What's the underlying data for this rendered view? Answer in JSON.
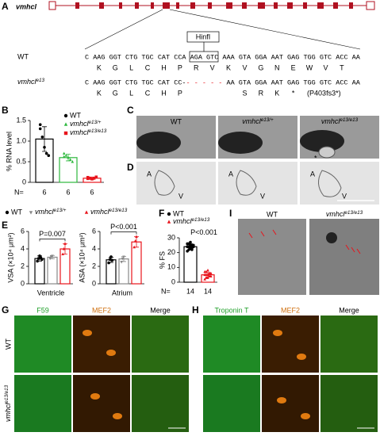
{
  "panels": {
    "a": "A",
    "b": "B",
    "c": "C",
    "d": "D",
    "e": "E",
    "f": "F",
    "g": "G",
    "h": "H",
    "i": "I"
  },
  "gene": {
    "name": "vmhcl",
    "enzyme": "HinfI"
  },
  "sequence": {
    "wt_label": "WT",
    "wt_dna": "C AAG GGT CTG TGC CAT CCA AGA GTC AAA GTA GGA AAT GAG TGG GTC ACC AA",
    "wt_aa": [
      "K",
      "G",
      "L",
      "C",
      "H",
      "P",
      "R",
      "V",
      "K",
      "V",
      "G",
      "N",
      "E",
      "W",
      "V",
      "T"
    ],
    "mut_label": "vmhcl e13",
    "mut_dna": [
      "C AAG GGT CTG TGC CAT CC-",
      "- - - - -",
      "AA GTA GGA AAT GAG TGG GTC ACC AA"
    ],
    "mut_aa": [
      "K",
      "G",
      "L",
      "C",
      "H",
      "P",
      "S",
      "R",
      "K",
      "*"
    ],
    "mut_note": "(P403fs3*)"
  },
  "chart_data": [
    {
      "type": "bar",
      "ylabel": "% RNA level",
      "ylim": [
        0,
        1.5
      ],
      "yticks": [
        0,
        0.5,
        {
          "value": 1,
          "label": "1.0"
        },
        1.5
      ],
      "n_label": "N=",
      "n": [
        6,
        6,
        6
      ],
      "series": [
        {
          "name": "WT",
          "color": "#000000",
          "marker": "circle",
          "values": [
            1.05
          ],
          "errors": [
            0.3
          ],
          "points": [
            1.4,
            1.1,
            0.85,
            0.7,
            0.65,
            1.3
          ]
        },
        {
          "name": "vmhcl e13/+",
          "color": "#2db83d",
          "marker": "triangle-up",
          "values": [
            0.6
          ],
          "errors": [
            0.08
          ],
          "points": [
            0.7,
            0.65,
            0.6,
            0.55,
            0.5,
            0.62
          ]
        },
        {
          "name": "vmhcl e13/e13",
          "color": "#e8141c",
          "marker": "square",
          "values": [
            0.1
          ],
          "errors": [
            0.03
          ],
          "points": [
            0.12,
            0.1,
            0.08,
            0.1,
            0.13,
            0.09
          ]
        }
      ]
    },
    {
      "type": "bar",
      "ylabel": "VSA (×10⁴ μm²)",
      "ylim": [
        0,
        6
      ],
      "yticks": [
        0,
        2,
        4,
        6
      ],
      "categories": [
        "Ventricle"
      ],
      "annotation": "P=0.007",
      "bracket": true,
      "series": [
        {
          "name": "WT",
          "color": "#000000",
          "marker": "circle",
          "values": [
            2.9
          ],
          "errors": [
            0.3
          ],
          "points": [
            2.6,
            2.9,
            3.2,
            3.0,
            2.8
          ]
        },
        {
          "name": "vmhcl e13/+",
          "color": "#888888",
          "marker": "triangle-down",
          "values": [
            3.05
          ],
          "errors": [
            0.2
          ],
          "points": [
            2.9,
            3.1,
            3.2
          ]
        },
        {
          "name": "vmhcl e13/e13",
          "color": "#e8141c",
          "marker": "triangle-up",
          "values": [
            4.0
          ],
          "errors": [
            0.6
          ],
          "points": [
            3.4,
            4.0,
            4.6
          ]
        }
      ]
    },
    {
      "type": "bar",
      "ylabel": "ASA (×10⁴ μm²)",
      "ylim": [
        0,
        6
      ],
      "yticks": [
        0,
        2,
        4,
        6
      ],
      "categories": [
        "Atrium"
      ],
      "annotation": "P<0.001",
      "bracket": true,
      "series": [
        {
          "color": "#000000",
          "marker": "circle",
          "values": [
            2.75
          ],
          "errors": [
            0.3
          ],
          "points": [
            2.4,
            2.8,
            3.1,
            2.7
          ]
        },
        {
          "color": "#888888",
          "marker": "triangle-down",
          "values": [
            2.85
          ],
          "errors": [
            0.3
          ],
          "points": [
            2.5,
            2.9,
            3.1
          ]
        },
        {
          "color": "#e8141c",
          "marker": "triangle-up",
          "values": [
            4.8
          ],
          "errors": [
            0.6
          ],
          "points": [
            4.2,
            4.9,
            5.4
          ]
        }
      ]
    },
    {
      "type": "bar",
      "ylabel": "% FS",
      "ylim": [
        0,
        30
      ],
      "yticks": [
        0,
        10,
        20,
        30
      ],
      "n_label": "N=",
      "n": [
        14,
        14
      ],
      "annotation": "P<0.001",
      "bracket": false,
      "series": [
        {
          "name": "WT",
          "color": "#000000",
          "marker": "circle",
          "values": [
            24
          ],
          "errors": [
            2
          ],
          "points": [
            21,
            22,
            23,
            23,
            24,
            24,
            24,
            25,
            25,
            25,
            26,
            26,
            27,
            22
          ]
        },
        {
          "name": "vmhcl e13/e13",
          "color": "#e8141c",
          "marker": "triangle-up",
          "values": [
            5
          ],
          "errors": [
            1.5
          ],
          "points": [
            2,
            3,
            3,
            4,
            4,
            5,
            5,
            5,
            6,
            6,
            7,
            7,
            8,
            4
          ]
        }
      ]
    }
  ],
  "images": {
    "c_labels": [
      "WT",
      "vmhcl e13/+",
      "vmhcl e13/e13"
    ],
    "c_mark": "*",
    "d_labels": [
      [
        "A",
        "V"
      ],
      [
        "A",
        "V"
      ],
      [
        "A",
        "V"
      ]
    ],
    "g_headers": [
      "F59",
      "MEF2",
      "Merge"
    ],
    "g_rows": [
      "WT",
      "vmhcl e13/e13"
    ],
    "h_headers": [
      "Troponin T",
      "MEF2",
      "Merge"
    ],
    "i_labels": [
      "WT",
      "vmhcl e13/e13"
    ]
  }
}
